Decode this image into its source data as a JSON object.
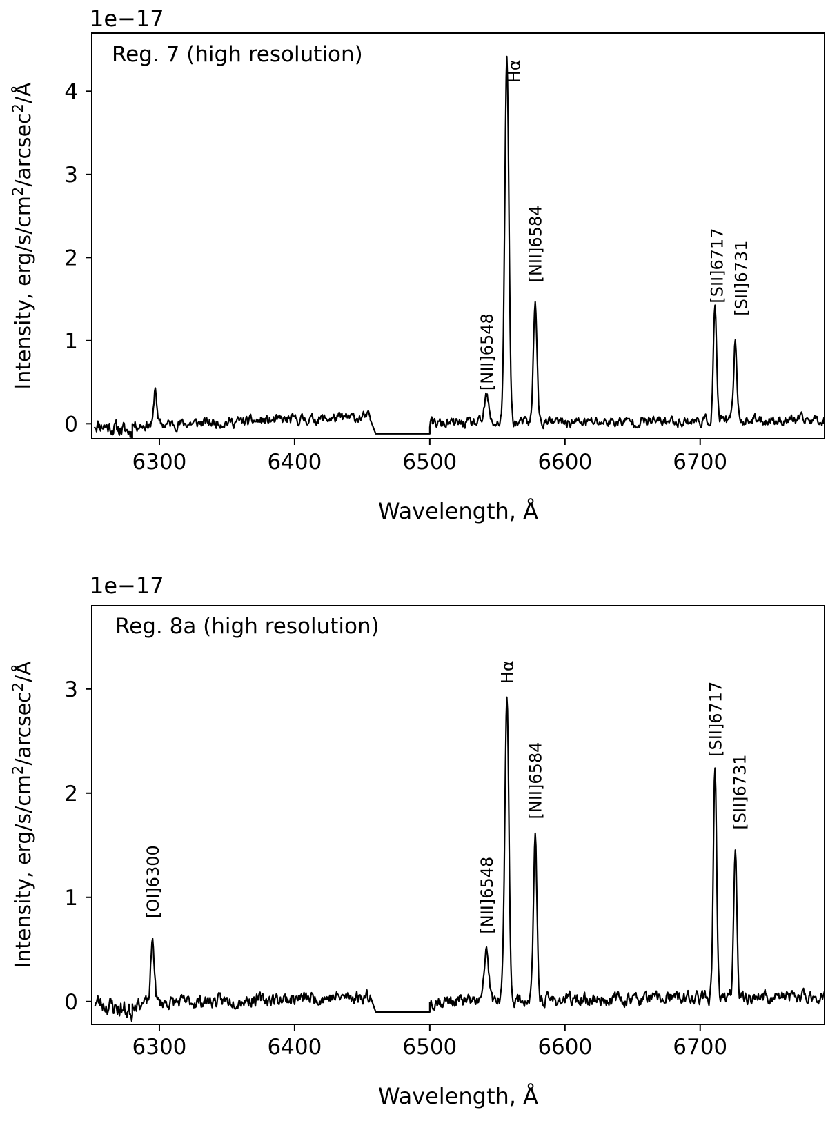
{
  "chart_data": [
    {
      "type": "line",
      "title": "",
      "panel_label": "Reg. 7 (high resolution)",
      "xlabel": "Wavelength, Å",
      "ylabel_parts": [
        "Intensity, erg/s/cm",
        "2",
        "/arcsec",
        "2",
        "/Å"
      ],
      "offset_text": "1e−17",
      "xlim": [
        6250,
        6792
      ],
      "ylim": [
        -0.18,
        4.7
      ],
      "xticks": [
        6300,
        6400,
        6500,
        6600,
        6700
      ],
      "yticks": [
        0,
        1,
        2,
        3,
        4
      ],
      "grid": false,
      "continuum": {
        "seed": 11,
        "amp": 0.07,
        "segments": [
          {
            "x": [
              6252,
              6280
            ],
            "base": [
              0.0,
              -0.1
            ],
            "amp": 0.1
          },
          {
            "x": [
              6280,
              6456
            ],
            "base": [
              -0.02,
              0.08
            ]
          },
          {
            "x": [
              6456,
              6460
            ],
            "base": [
              0.05,
              -0.12
            ],
            "amp": 0.0
          },
          {
            "x": [
              6460,
              6500
            ],
            "base": [
              -0.12,
              -0.12
            ],
            "amp": 0.0
          },
          {
            "x": [
              6500,
              6792
            ],
            "base": [
              0.0,
              0.05
            ]
          }
        ]
      },
      "lines": [
        {
          "label": "",
          "center": 6297,
          "peak": 0.45,
          "sigma": 1.0
        },
        {
          "label": "[NII]6548",
          "center": 6542,
          "peak": 0.33,
          "sigma": 1.5,
          "label_y": 0.4
        },
        {
          "label": "Hα",
          "center": 6557,
          "peak": 4.37,
          "sigma": 1.5,
          "label_y": 4.1,
          "label_dx": 10
        },
        {
          "label": "[NII]6584",
          "center": 6578,
          "peak": 1.48,
          "sigma": 1.3,
          "label_y": 1.7
        },
        {
          "label": "[SII]6717",
          "center": 6711,
          "peak": 1.37,
          "sigma": 1.2,
          "label_y": 1.45,
          "label_dx": 2
        },
        {
          "label": "[SII]6731",
          "center": 6726,
          "peak": 0.95,
          "sigma": 1.2,
          "label_y": 1.3,
          "label_dx": 8
        }
      ]
    },
    {
      "type": "line",
      "title": "",
      "panel_label": "Reg. 8a (high resolution)",
      "xlabel": "Wavelength, Å",
      "ylabel_parts": [
        "Intensity, erg/s/cm",
        "2",
        "/arcsec",
        "2",
        "/Å"
      ],
      "offset_text": "1e−17",
      "xlim": [
        6250,
        6792
      ],
      "ylim": [
        -0.22,
        3.8
      ],
      "xticks": [
        6300,
        6400,
        6500,
        6600,
        6700
      ],
      "yticks": [
        0,
        1,
        2,
        3
      ],
      "grid": false,
      "continuum": {
        "seed": 23,
        "amp": 0.07,
        "segments": [
          {
            "x": [
              6252,
              6280
            ],
            "base": [
              0.0,
              -0.1
            ],
            "amp": 0.1
          },
          {
            "x": [
              6280,
              6456
            ],
            "base": [
              -0.02,
              0.05
            ]
          },
          {
            "x": [
              6456,
              6460
            ],
            "base": [
              0.05,
              -0.1
            ],
            "amp": 0.0
          },
          {
            "x": [
              6460,
              6500
            ],
            "base": [
              -0.1,
              -0.1
            ],
            "amp": 0.0
          },
          {
            "x": [
              6500,
              6792
            ],
            "base": [
              0.0,
              0.05
            ]
          }
        ]
      },
      "lines": [
        {
          "label": "[OI]6300",
          "center": 6295,
          "peak": 0.6,
          "sigma": 1.3,
          "label_y": 0.8
        },
        {
          "label": "[NII]6548",
          "center": 6542,
          "peak": 0.52,
          "sigma": 1.5,
          "label_y": 0.65
        },
        {
          "label": "Hα",
          "center": 6557,
          "peak": 2.9,
          "sigma": 1.5,
          "label_y": 3.05
        },
        {
          "label": "[NII]6584",
          "center": 6578,
          "peak": 1.53,
          "sigma": 1.3,
          "label_y": 1.75
        },
        {
          "label": "[SII]6717",
          "center": 6711,
          "peak": 2.19,
          "sigma": 1.2,
          "label_y": 2.35
        },
        {
          "label": "[SII]6731",
          "center": 6726,
          "peak": 1.45,
          "sigma": 1.2,
          "label_y": 1.65,
          "label_dx": 6
        }
      ]
    }
  ]
}
